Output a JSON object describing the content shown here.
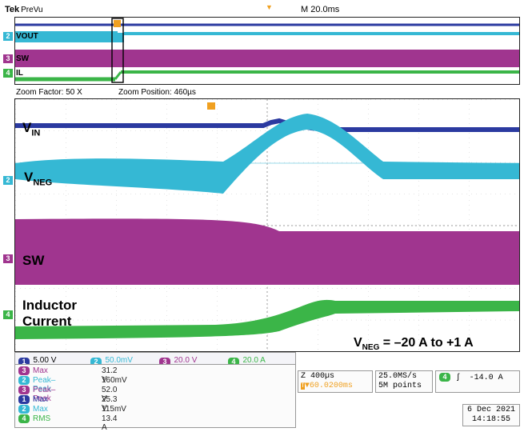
{
  "header": {
    "brand": "Tek",
    "mode": "PreVu",
    "timebase": "M 20.0ms"
  },
  "overview": {
    "channels": [
      {
        "marker": "2",
        "label": "VOUT"
      },
      {
        "marker": "3",
        "label": "SW"
      },
      {
        "marker": "4",
        "label": "IL"
      }
    ]
  },
  "zoom": {
    "factor_text": "Zoom Factor: 50 X",
    "position_text": "Zoom Position: 460µs"
  },
  "traces": {
    "vin": {
      "main": "V",
      "sub": "IN"
    },
    "vneg": {
      "main": "V",
      "sub": "NEG"
    },
    "sw": "SW",
    "inductor_line1": "Inductor",
    "inductor_line2": "Current"
  },
  "annotation": {
    "prefix": "V",
    "sub": "NEG",
    "text": " = –20 A to +1 A"
  },
  "channel_settings": [
    {
      "ch": "1",
      "color": "#2b3aa0",
      "value": "5.00 V",
      "suffix": "Ⓦ"
    },
    {
      "ch": "2",
      "color": "#35b8d4",
      "value": "50.0mV",
      "suffix": "Ⓦ"
    },
    {
      "ch": "3",
      "color": "#a0358f",
      "value": "20.0 V",
      "suffix": ""
    },
    {
      "ch": "4",
      "color": "#3bb548",
      "value": "20.0 A",
      "suffix": "Ⓦ"
    }
  ],
  "measurements": [
    {
      "ch": "3",
      "color": "#a0358f",
      "label": "Max",
      "value": "31.2 V"
    },
    {
      "ch": "2",
      "color": "#35b8d4",
      "label": "Peak–Peak",
      "value": "160mV"
    },
    {
      "ch": "3",
      "color": "#a0358f",
      "label": "Peak–Peak",
      "value": "52.0 V"
    },
    {
      "ch": "1",
      "color": "#2b3aa0",
      "label": "Max",
      "value": "25.3 V"
    },
    {
      "ch": "2",
      "color": "#35b8d4",
      "label": "Max",
      "value": "115mV"
    },
    {
      "ch": "4",
      "color": "#3bb548",
      "label": "RMS",
      "value": "13.4 A"
    }
  ],
  "timebox": {
    "zoom_time": "Z 400µs",
    "position": "▼60.0200ms"
  },
  "samplebox": {
    "rate": "25.0MS/s",
    "points": "5M points"
  },
  "triggerbox": {
    "ch": "4",
    "slope": "ʃ",
    "level": "-14.0 A"
  },
  "datetime": {
    "date": "6 Dec  2021",
    "time": "14:18:55"
  },
  "colors": {
    "ch1": "#2b3aa0",
    "ch2": "#35b8d4",
    "ch3": "#a0358f",
    "ch4": "#3bb548",
    "trigger": "#f0a020"
  }
}
